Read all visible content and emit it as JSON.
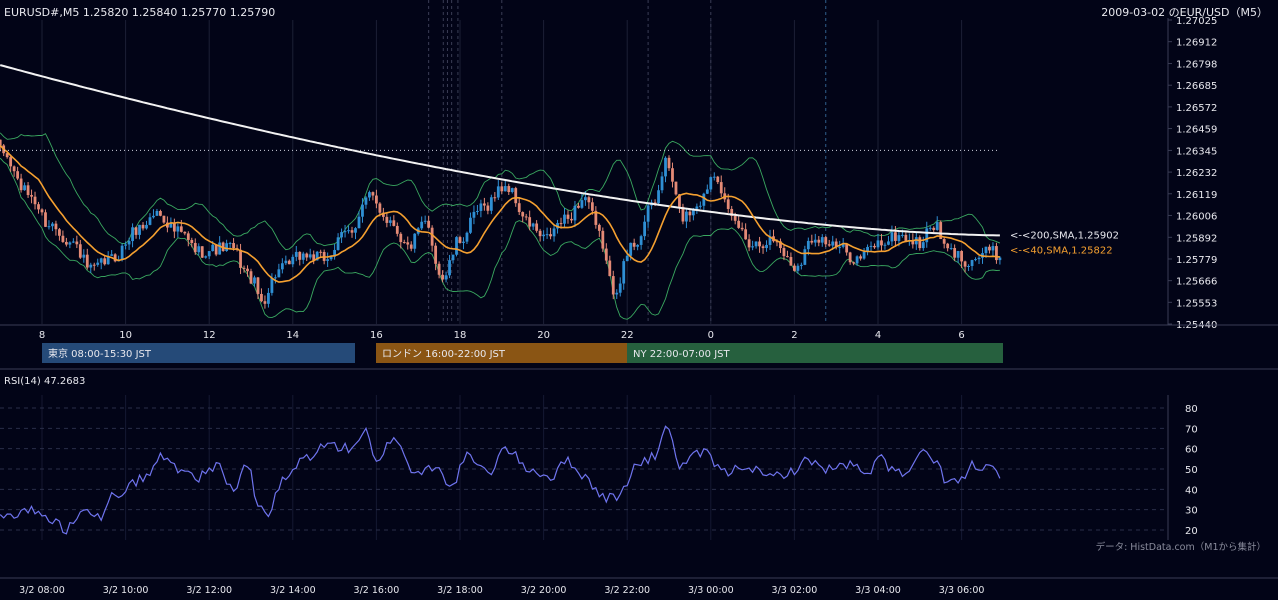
{
  "header": {
    "symbol_ohlc": "EURUSD#,M5 1.25820 1.25840 1.25770 1.25790",
    "chart_title": "2009-03-02 のEUR/USD（M5）"
  },
  "sessions": [
    {
      "label": "東京 08:00-15:30 JST",
      "color": "#254a78"
    },
    {
      "label": "ロンドン 16:00-22:00 JST",
      "color": "#8a5514"
    },
    {
      "label": "NY 22:00-07:00 JST",
      "color": "#26603e"
    }
  ],
  "rsi_label": "RSI(14) 47.2683",
  "source_note": "データ: HistData.com（M1から集計）",
  "chart_data": [
    {
      "type": "candlestick",
      "title": "2009-03-02 のEUR/USD（M5）",
      "price_ticks": [
        "1.27025",
        "1.26912",
        "1.26798",
        "1.26685",
        "1.26572",
        "1.26459",
        "1.26345",
        "1.26232",
        "1.26119",
        "1.26006",
        "1.25892",
        "1.25779",
        "1.25666",
        "1.25553",
        "1.25440"
      ],
      "ylim": [
        1.2544,
        1.27025
      ],
      "hour_ticks": [
        "8",
        "10",
        "12",
        "14",
        "16",
        "18",
        "20",
        "22",
        "0",
        "2",
        "4",
        "6"
      ],
      "colors": {
        "up": "#2f8fd4",
        "down": "#e48a76",
        "sma40": "#f5a030",
        "sma200": "#f2f2f2",
        "bands": "#3aa860"
      },
      "anchor_points": [
        {
          "time": "07:00",
          "price": 1.2634
        },
        {
          "time": "07:40",
          "price": 1.2612
        },
        {
          "time": "08:10",
          "price": 1.2596
        },
        {
          "time": "08:45",
          "price": 1.2586
        },
        {
          "time": "09:10",
          "price": 1.2572
        },
        {
          "time": "09:40",
          "price": 1.2578
        },
        {
          "time": "10:20",
          "price": 1.2594
        },
        {
          "time": "10:45",
          "price": 1.2602
        },
        {
          "time": "11:15",
          "price": 1.2592
        },
        {
          "time": "11:45",
          "price": 1.2582
        },
        {
          "time": "12:30",
          "price": 1.2584
        },
        {
          "time": "13:00",
          "price": 1.2568
        },
        {
          "time": "13:15",
          "price": 1.2556
        },
        {
          "time": "13:40",
          "price": 1.2572
        },
        {
          "time": "14:15",
          "price": 1.258
        },
        {
          "time": "14:45",
          "price": 1.2578
        },
        {
          "time": "15:20",
          "price": 1.2592
        },
        {
          "time": "15:50",
          "price": 1.261
        },
        {
          "time": "16:20",
          "price": 1.2598
        },
        {
          "time": "16:45",
          "price": 1.2584
        },
        {
          "time": "17:10",
          "price": 1.2596
        },
        {
          "time": "17:35",
          "price": 1.2568
        },
        {
          "time": "18:00",
          "price": 1.2588
        },
        {
          "time": "18:30",
          "price": 1.2604
        },
        {
          "time": "19:05",
          "price": 1.2616
        },
        {
          "time": "19:40",
          "price": 1.2596
        },
        {
          "time": "20:00",
          "price": 1.2588
        },
        {
          "time": "20:30",
          "price": 1.2598
        },
        {
          "time": "21:00",
          "price": 1.261
        },
        {
          "time": "21:20",
          "price": 1.259
        },
        {
          "time": "21:40",
          "price": 1.2562
        },
        {
          "time": "22:10",
          "price": 1.2586
        },
        {
          "time": "22:40",
          "price": 1.2608
        },
        {
          "time": "22:55",
          "price": 1.2628
        },
        {
          "time": "23:20",
          "price": 1.26
        },
        {
          "time": "23:45",
          "price": 1.2608
        },
        {
          "time": "00:05",
          "price": 1.2624
        },
        {
          "time": "00:30",
          "price": 1.2598
        },
        {
          "time": "01:00",
          "price": 1.2586
        },
        {
          "time": "01:30",
          "price": 1.2588
        },
        {
          "time": "02:00",
          "price": 1.2574
        },
        {
          "time": "02:30",
          "price": 1.259
        },
        {
          "time": "03:00",
          "price": 1.2584
        },
        {
          "time": "03:30",
          "price": 1.2578
        },
        {
          "time": "04:00",
          "price": 1.2586
        },
        {
          "time": "04:30",
          "price": 1.259
        },
        {
          "time": "05:00",
          "price": 1.2586
        },
        {
          "time": "05:20",
          "price": 1.2596
        },
        {
          "time": "05:40",
          "price": 1.2582
        },
        {
          "time": "06:10",
          "price": 1.2577
        },
        {
          "time": "06:40",
          "price": 1.2582
        },
        {
          "time": "06:55",
          "price": 1.2579
        }
      ],
      "sma200": {
        "label": "<-<200,SMA,1.25902",
        "value": 1.25902
      },
      "sma40": {
        "label": "<-<40,SMA,1.25822",
        "value": 1.25822
      },
      "reference_line": 1.26345
    },
    {
      "type": "line",
      "title": "RSI(14) 47.2683",
      "yticks": [
        "80",
        "70",
        "60",
        "50",
        "40",
        "30",
        "20"
      ],
      "ylim": [
        15,
        85
      ],
      "xticks": [
        "3/2 08:00",
        "3/2 10:00",
        "3/2 12:00",
        "3/2 14:00",
        "3/2 16:00",
        "3/2 18:00",
        "3/2 20:00",
        "3/2 22:00",
        "3/3 00:00",
        "3/3 02:00",
        "3/3 04:00",
        "3/3 06:00"
      ],
      "color": "#6f74ee",
      "anchor_points": [
        {
          "time": "07:00",
          "value": 26
        },
        {
          "time": "07:40",
          "value": 30
        },
        {
          "time": "08:20",
          "value": 24
        },
        {
          "time": "08:35",
          "value": 20
        },
        {
          "time": "09:00",
          "value": 32
        },
        {
          "time": "09:25",
          "value": 26
        },
        {
          "time": "09:45",
          "value": 38
        },
        {
          "time": "10:30",
          "value": 46
        },
        {
          "time": "10:50",
          "value": 56
        },
        {
          "time": "11:20",
          "value": 50
        },
        {
          "time": "11:45",
          "value": 46
        },
        {
          "time": "12:10",
          "value": 52
        },
        {
          "time": "12:35",
          "value": 40
        },
        {
          "time": "12:55",
          "value": 52
        },
        {
          "time": "13:10",
          "value": 32
        },
        {
          "time": "13:25",
          "value": 28
        },
        {
          "time": "13:45",
          "value": 44
        },
        {
          "time": "14:20",
          "value": 56
        },
        {
          "time": "14:50",
          "value": 62
        },
        {
          "time": "15:20",
          "value": 60
        },
        {
          "time": "15:45",
          "value": 68
        },
        {
          "time": "16:00",
          "value": 52
        },
        {
          "time": "16:25",
          "value": 66
        },
        {
          "time": "16:55",
          "value": 48
        },
        {
          "time": "17:30",
          "value": 52
        },
        {
          "time": "17:45",
          "value": 40
        },
        {
          "time": "18:10",
          "value": 56
        },
        {
          "time": "18:40",
          "value": 48
        },
        {
          "time": "19:05",
          "value": 60
        },
        {
          "time": "19:40",
          "value": 50
        },
        {
          "time": "20:10",
          "value": 46
        },
        {
          "time": "20:35",
          "value": 54
        },
        {
          "time": "21:00",
          "value": 46
        },
        {
          "time": "21:25",
          "value": 36
        },
        {
          "time": "21:45",
          "value": 36
        },
        {
          "time": "22:15",
          "value": 52
        },
        {
          "time": "22:40",
          "value": 56
        },
        {
          "time": "22:55",
          "value": 72
        },
        {
          "time": "23:15",
          "value": 52
        },
        {
          "time": "23:50",
          "value": 58
        },
        {
          "time": "00:20",
          "value": 48
        },
        {
          "time": "00:50",
          "value": 52
        },
        {
          "time": "01:20",
          "value": 46
        },
        {
          "time": "01:50",
          "value": 48
        },
        {
          "time": "02:20",
          "value": 54
        },
        {
          "time": "02:50",
          "value": 50
        },
        {
          "time": "03:20",
          "value": 52
        },
        {
          "time": "03:50",
          "value": 46
        },
        {
          "time": "04:00",
          "value": 58
        },
        {
          "time": "04:20",
          "value": 50
        },
        {
          "time": "04:40",
          "value": 46
        },
        {
          "time": "05:00",
          "value": 58
        },
        {
          "time": "05:20",
          "value": 54
        },
        {
          "time": "05:40",
          "value": 44
        },
        {
          "time": "06:00",
          "value": 44
        },
        {
          "time": "06:15",
          "value": 52
        },
        {
          "time": "06:40",
          "value": 50
        },
        {
          "time": "06:55",
          "value": 47
        }
      ]
    }
  ]
}
